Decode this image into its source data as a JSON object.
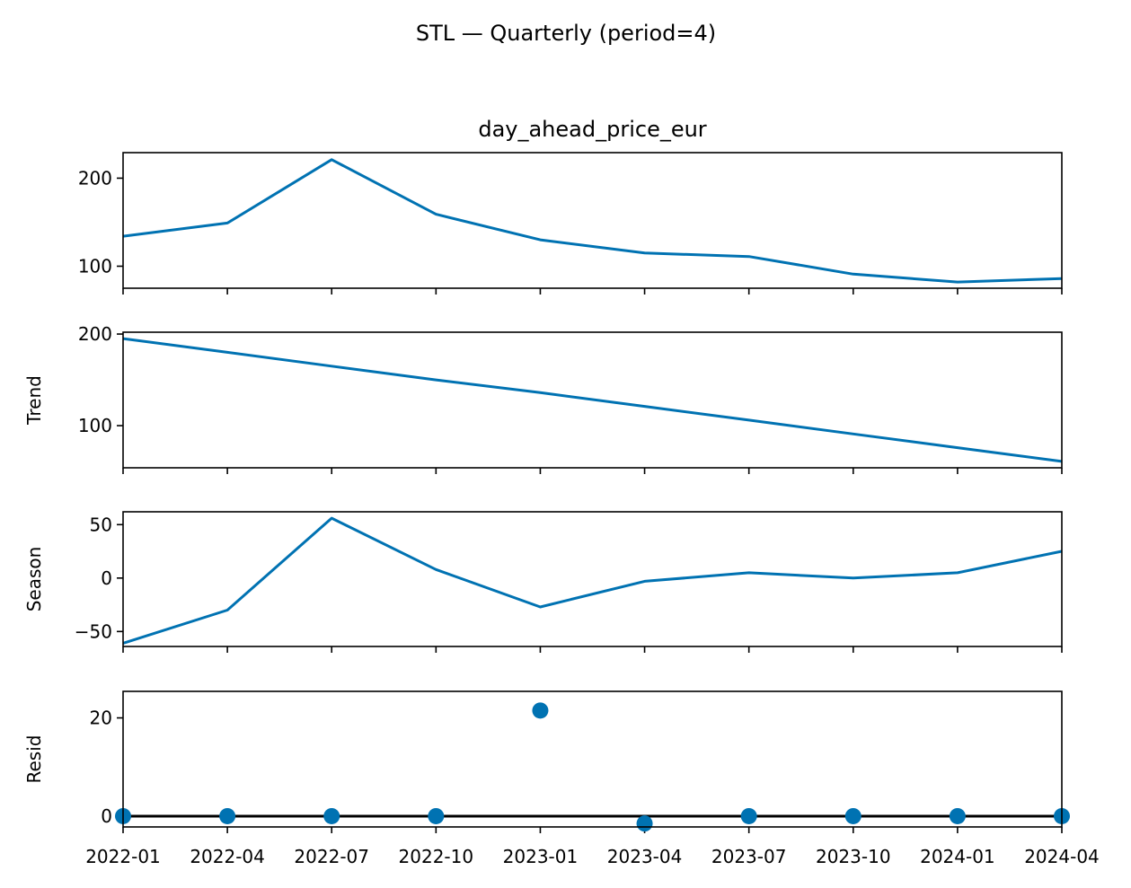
{
  "chart_data": {
    "type": "line",
    "title": "STL — Quarterly (period=4)",
    "x": [
      "2022-01",
      "2022-04",
      "2022-07",
      "2022-10",
      "2023-01",
      "2023-04",
      "2023-07",
      "2023-10",
      "2024-01",
      "2024-04"
    ],
    "xtick_labels": [
      "2022-01",
      "2022-04",
      "2022-07",
      "2022-10",
      "2023-01",
      "2023-04",
      "2023-07",
      "2023-10",
      "2024-01",
      "2024-04"
    ],
    "panels": [
      {
        "key": "observed",
        "title": "day_ahead_price_eur",
        "ylabel": "",
        "type": "line",
        "values": [
          134,
          149,
          221,
          159,
          130,
          115,
          111,
          91,
          82,
          86
        ],
        "ylim": [
          75,
          229
        ],
        "yticks": [
          100,
          200
        ],
        "color": "#0072B2"
      },
      {
        "key": "trend",
        "title": "",
        "ylabel": "Trend",
        "type": "line",
        "values": [
          195,
          180,
          165,
          150,
          136,
          121,
          106,
          91,
          76,
          61
        ],
        "ylim": [
          54,
          202
        ],
        "yticks": [
          100,
          200
        ],
        "color": "#0072B2"
      },
      {
        "key": "season",
        "title": "",
        "ylabel": "Season",
        "type": "line",
        "values": [
          -61,
          -30,
          56,
          8,
          -27,
          -3,
          5,
          0,
          5,
          25
        ],
        "ylim": [
          -64,
          62
        ],
        "yticks": [
          -50,
          0,
          50
        ],
        "color": "#0072B2"
      },
      {
        "key": "resid",
        "title": "",
        "ylabel": "Resid",
        "type": "scatter",
        "values": [
          0,
          0,
          0,
          0,
          21.5,
          -1.5,
          0,
          0,
          0,
          0
        ],
        "ylim": [
          -2.2,
          25.4
        ],
        "yticks": [
          0,
          20
        ],
        "color": "#0072B2",
        "zero_line_color": "#000000"
      }
    ]
  }
}
